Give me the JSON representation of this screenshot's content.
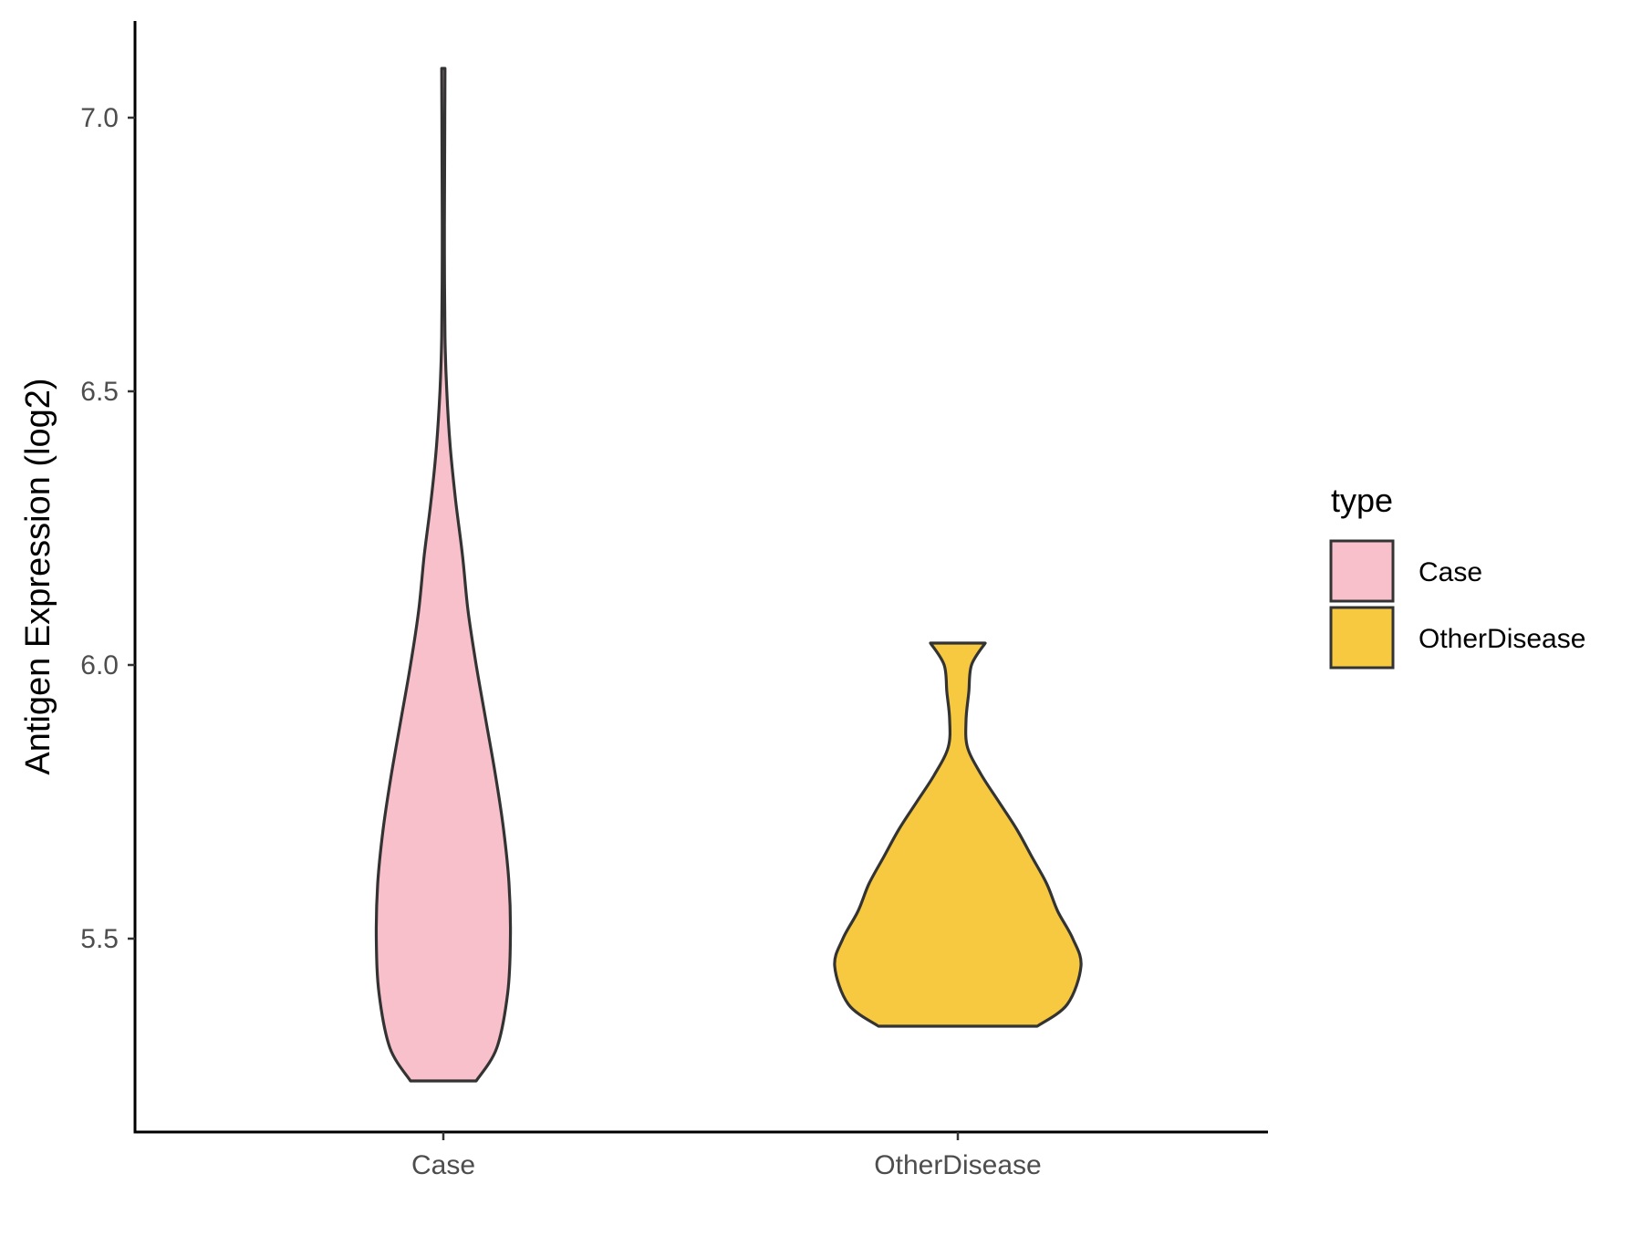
{
  "chart_data": {
    "type": "violin",
    "title": "",
    "xlabel": "",
    "ylabel": "Antigen Expression (log2)",
    "ylim": [
      5.16,
      7.18
    ],
    "yticks": [
      5.5,
      6.0,
      6.5,
      7.0
    ],
    "ytick_labels": [
      "5.5",
      "6.0",
      "6.5",
      "7.0"
    ],
    "categories": [
      "Case",
      "OtherDisease"
    ],
    "grid": false,
    "legend": {
      "title": "type",
      "placement": "right",
      "entries": [
        "Case",
        "OtherDisease"
      ]
    },
    "series": [
      {
        "name": "Case",
        "color": "#F7C0CB",
        "min": 5.24,
        "max": 7.09,
        "density_profile": [
          [
            5.24,
            0.24
          ],
          [
            5.3,
            0.39
          ],
          [
            5.4,
            0.47
          ],
          [
            5.5,
            0.49
          ],
          [
            5.6,
            0.48
          ],
          [
            5.7,
            0.44
          ],
          [
            5.8,
            0.38
          ],
          [
            5.9,
            0.31
          ],
          [
            6.0,
            0.24
          ],
          [
            6.1,
            0.18
          ],
          [
            6.2,
            0.14
          ],
          [
            6.3,
            0.09
          ],
          [
            6.4,
            0.05
          ],
          [
            6.5,
            0.025
          ],
          [
            6.6,
            0.012
          ],
          [
            6.75,
            0.008
          ],
          [
            6.9,
            0.009
          ],
          [
            7.0,
            0.011
          ],
          [
            7.09,
            0.012
          ]
        ]
      },
      {
        "name": "OtherDisease",
        "color": "#F6C940",
        "min": 5.34,
        "max": 6.04,
        "density_profile": [
          [
            5.34,
            0.58
          ],
          [
            5.38,
            0.8
          ],
          [
            5.45,
            0.9
          ],
          [
            5.5,
            0.84
          ],
          [
            5.55,
            0.73
          ],
          [
            5.6,
            0.65
          ],
          [
            5.65,
            0.54
          ],
          [
            5.7,
            0.43
          ],
          [
            5.75,
            0.3
          ],
          [
            5.8,
            0.17
          ],
          [
            5.85,
            0.07
          ],
          [
            5.9,
            0.06
          ],
          [
            5.95,
            0.08
          ],
          [
            6.0,
            0.1
          ],
          [
            6.04,
            0.2
          ]
        ]
      }
    ]
  },
  "colors": {
    "outline": "#333333",
    "axis": "#000000"
  }
}
